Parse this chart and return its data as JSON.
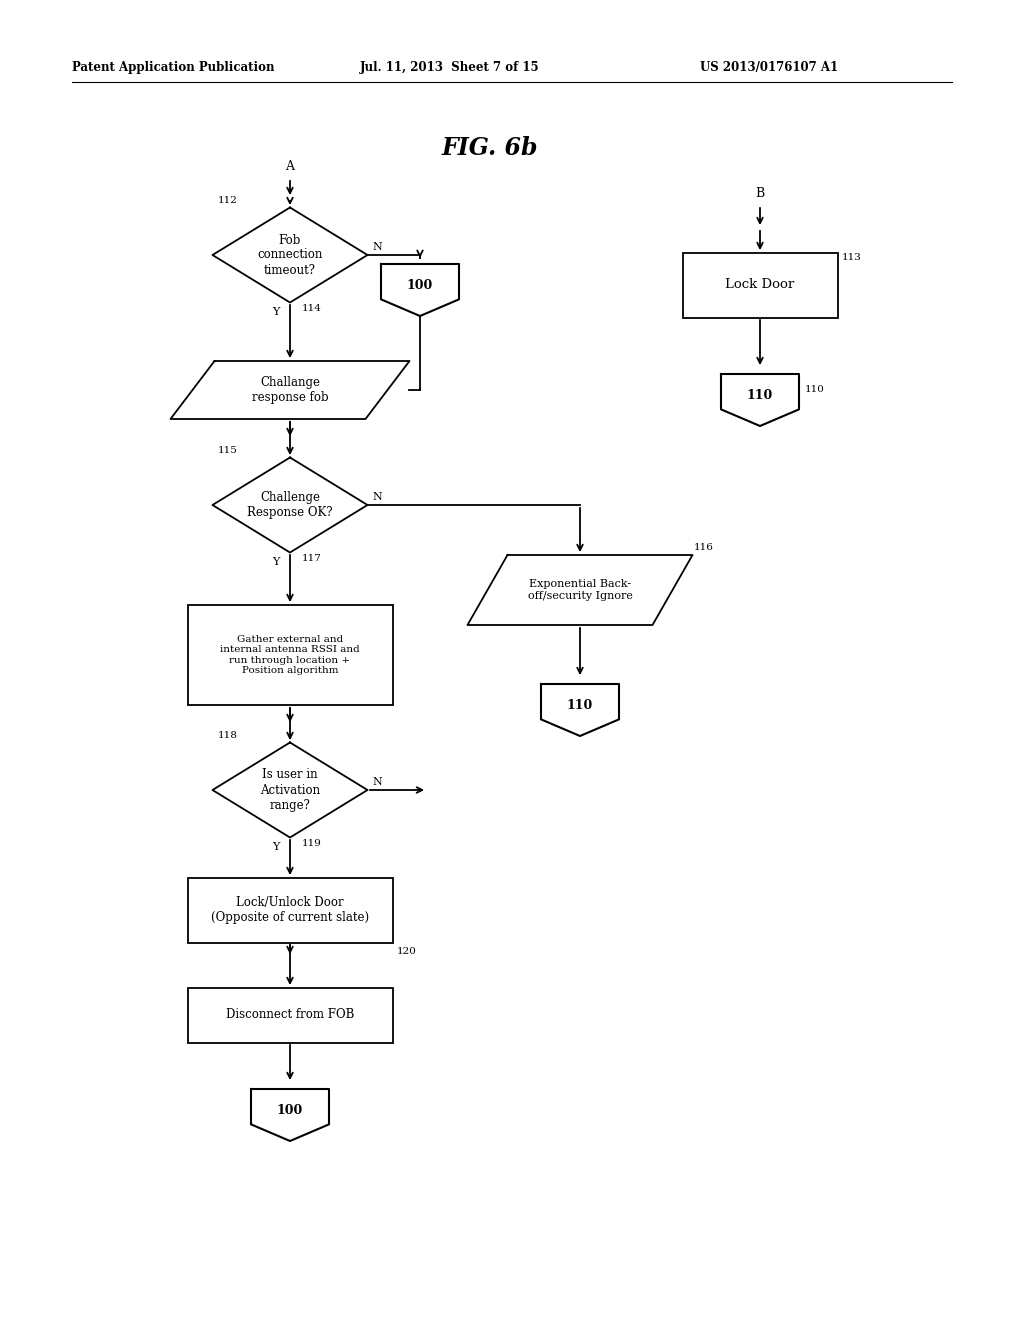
{
  "title": "FIG. 6b",
  "header_left": "Patent Application Publication",
  "header_mid": "Jul. 11, 2013  Sheet 7 of 15",
  "header_right": "US 2013/0176107 A1",
  "bg_color": "#ffffff",
  "text_color": "#000000",
  "lw": 1.3
}
